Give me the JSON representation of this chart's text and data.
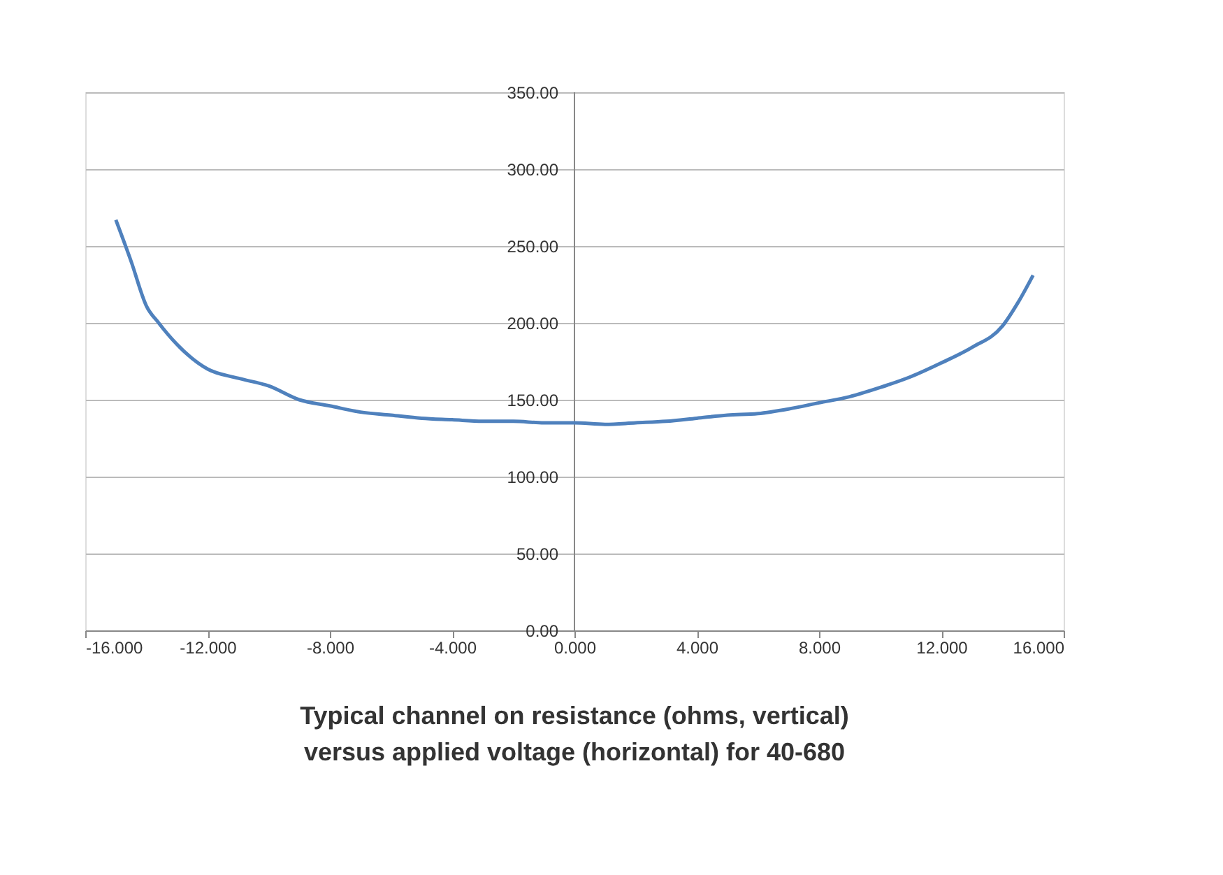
{
  "chart_data": {
    "type": "line",
    "title": "Typical channel on resistance (ohms, vertical) versus applied voltage (horizontal) for 40-680",
    "x": [
      -15,
      -14.5,
      -14,
      -13.6,
      -13,
      -12,
      -11,
      -10,
      -9,
      -8,
      -7,
      -6,
      -5,
      -4,
      -3,
      -2,
      -1,
      0,
      1,
      2,
      3,
      4,
      5,
      6,
      7,
      8,
      9,
      10,
      11,
      12,
      13,
      14,
      14.5,
      15
    ],
    "series": [
      {
        "color": "#4f81bd",
        "values": [
          267,
          240,
          211,
          200,
          186,
          170,
          164,
          159,
          150,
          146,
          142,
          140,
          138,
          137,
          136,
          136,
          135,
          135,
          134,
          135,
          136,
          138,
          140,
          141,
          144,
          148,
          152,
          158,
          165,
          174,
          184,
          198,
          213,
          231
        ]
      }
    ],
    "xlim": [
      -16,
      16
    ],
    "xticks": [
      {
        "value": -16,
        "label": "-16.000"
      },
      {
        "value": -12,
        "label": "-12.000"
      },
      {
        "value": -8,
        "label": "-8.000"
      },
      {
        "value": -4,
        "label": "-4.000"
      },
      {
        "value": 0,
        "label": "0.000"
      },
      {
        "value": 4,
        "label": "4.000"
      },
      {
        "value": 8,
        "label": "8.000"
      },
      {
        "value": 12,
        "label": "12.000"
      },
      {
        "value": 16,
        "label": "16.000"
      }
    ],
    "ylim": [
      0,
      350
    ],
    "yticks": [
      {
        "value": 0,
        "label": "0.00"
      },
      {
        "value": 50,
        "label": "50.00"
      },
      {
        "value": 100,
        "label": "100.00"
      },
      {
        "value": 150,
        "label": "150.00"
      },
      {
        "value": 200,
        "label": "200.00"
      },
      {
        "value": 250,
        "label": "250.00"
      },
      {
        "value": 300,
        "label": "300.00"
      },
      {
        "value": 350,
        "label": "350.00"
      }
    ],
    "grid": "y",
    "marker": "none",
    "line_style": "solid"
  }
}
